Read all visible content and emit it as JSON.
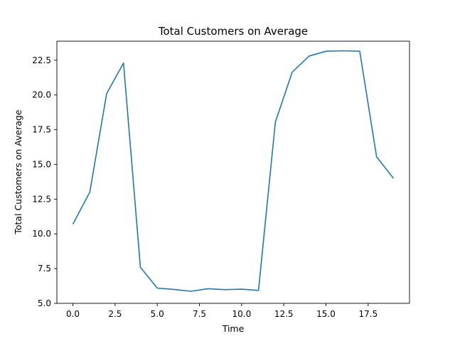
{
  "chart_data": {
    "type": "line",
    "title": "Total Customers on Average",
    "xlabel": "Time",
    "ylabel": "Total Customers on Average",
    "xlim": [
      -0.95,
      19.95
    ],
    "ylim": [
      5.0,
      23.87
    ],
    "grid": false,
    "xticks": [
      0.0,
      2.5,
      5.0,
      7.5,
      10.0,
      12.5,
      15.0,
      17.5
    ],
    "xtick_labels": [
      "0.0",
      "2.5",
      "5.0",
      "7.5",
      "10.0",
      "12.5",
      "15.0",
      "17.5"
    ],
    "yticks": [
      5.0,
      7.5,
      10.0,
      12.5,
      15.0,
      17.5,
      20.0,
      22.5
    ],
    "ytick_labels": [
      "5.0",
      "7.5",
      "10.0",
      "12.5",
      "15.0",
      "17.5",
      "20.0",
      "22.5"
    ],
    "series": [
      {
        "color": "#1f77b4",
        "x": [
          0,
          1,
          2,
          3,
          4,
          5,
          6,
          7,
          8,
          9,
          10,
          11,
          12,
          13,
          14,
          15,
          16,
          17,
          18,
          19
        ],
        "values": [
          10.7,
          13.0,
          20.1,
          22.3,
          7.6,
          6.1,
          6.0,
          5.87,
          6.05,
          5.99,
          6.02,
          5.93,
          18.05,
          21.65,
          22.8,
          23.15,
          23.18,
          23.15,
          15.55,
          14.0
        ]
      }
    ]
  }
}
